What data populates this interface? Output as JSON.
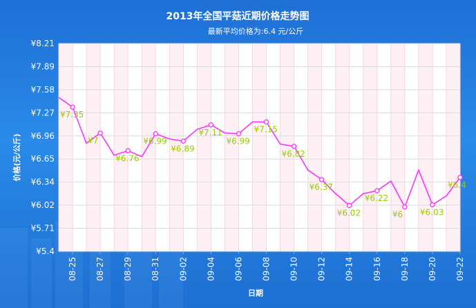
{
  "chart_data": {
    "type": "line",
    "title": "2013年全国平菇近期价格走势图",
    "subtitle": "最新平均价格为:6.4 元/公斤",
    "xlabel": "日期",
    "ylabel": "价格(元/公斤)",
    "ylim": [
      5.4,
      8.21
    ],
    "y_ticks": [
      "¥8.21",
      "¥7.89",
      "¥7.58",
      "¥7.27",
      "¥6.96",
      "¥6.65",
      "¥6.34",
      "¥6.02",
      "¥5.71",
      "¥5.4"
    ],
    "x_ticks": [
      "08-25",
      "08-27",
      "08-29",
      "08-31",
      "09-02",
      "09-04",
      "09-06",
      "09-08",
      "09-10",
      "09-12",
      "09-14",
      "09-16",
      "09-18",
      "09-20",
      "09-22"
    ],
    "grid": true,
    "series": [
      {
        "values": [
          7.48,
          7.35,
          6.86,
          7.0,
          6.7,
          6.76,
          6.68,
          6.99,
          6.92,
          6.89,
          7.05,
          7.11,
          7.0,
          6.99,
          7.15,
          7.15,
          6.85,
          6.82,
          6.5,
          6.37,
          6.18,
          6.02,
          6.18,
          6.22,
          6.35,
          6.0,
          6.5,
          6.03,
          6.15,
          6.4
        ],
        "color": "#ff33ff"
      }
    ],
    "data_labels": [
      "¥7.35",
      "¥7",
      "¥6.76",
      "¥6.99",
      "¥6.89",
      "¥7.11",
      "¥6.99",
      "¥7.15",
      "¥6.82",
      "¥6.37",
      "¥6.02",
      "¥6.22",
      "¥6",
      "¥6.03",
      "¥6.4"
    ]
  },
  "colors": {
    "background": "#1e6fd6",
    "line": "#ff33ff",
    "label": "#99cc00",
    "text": "#ffffff"
  }
}
